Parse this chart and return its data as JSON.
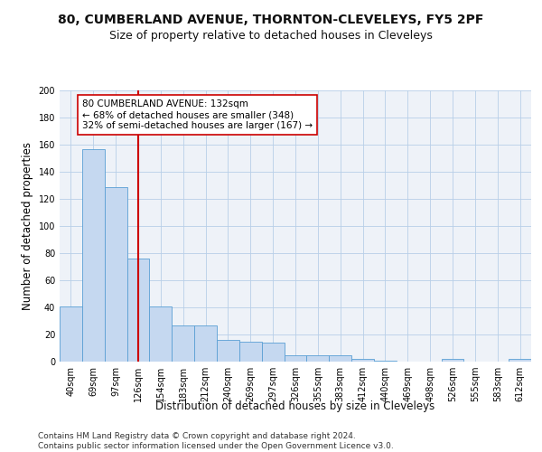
{
  "title": "80, CUMBERLAND AVENUE, THORNTON-CLEVELEYS, FY5 2PF",
  "subtitle": "Size of property relative to detached houses in Cleveleys",
  "xlabel": "Distribution of detached houses by size in Cleveleys",
  "ylabel": "Number of detached properties",
  "categories": [
    "40sqm",
    "69sqm",
    "97sqm",
    "126sqm",
    "154sqm",
    "183sqm",
    "212sqm",
    "240sqm",
    "269sqm",
    "297sqm",
    "326sqm",
    "355sqm",
    "383sqm",
    "412sqm",
    "440sqm",
    "469sqm",
    "498sqm",
    "526sqm",
    "555sqm",
    "583sqm",
    "612sqm"
  ],
  "values": [
    41,
    157,
    129,
    76,
    41,
    27,
    27,
    16,
    15,
    14,
    5,
    5,
    5,
    2,
    1,
    0,
    0,
    2,
    0,
    0,
    2
  ],
  "bar_color": "#c5d8f0",
  "bar_edge_color": "#5a9fd4",
  "vline_x": 3,
  "vline_color": "#cc0000",
  "annotation_text": "80 CUMBERLAND AVENUE: 132sqm\n← 68% of detached houses are smaller (348)\n32% of semi-detached houses are larger (167) →",
  "annotation_box_color": "#ffffff",
  "annotation_box_edge": "#cc0000",
  "ylim": [
    0,
    200
  ],
  "yticks": [
    0,
    20,
    40,
    60,
    80,
    100,
    120,
    140,
    160,
    180,
    200
  ],
  "grid_color": "#b8cfe8",
  "bg_color": "#eef2f8",
  "footer": "Contains HM Land Registry data © Crown copyright and database right 2024.\nContains public sector information licensed under the Open Government Licence v3.0.",
  "title_fontsize": 10,
  "subtitle_fontsize": 9,
  "xlabel_fontsize": 8.5,
  "ylabel_fontsize": 8.5,
  "footer_fontsize": 6.5,
  "tick_fontsize": 7,
  "annot_fontsize": 7.5
}
